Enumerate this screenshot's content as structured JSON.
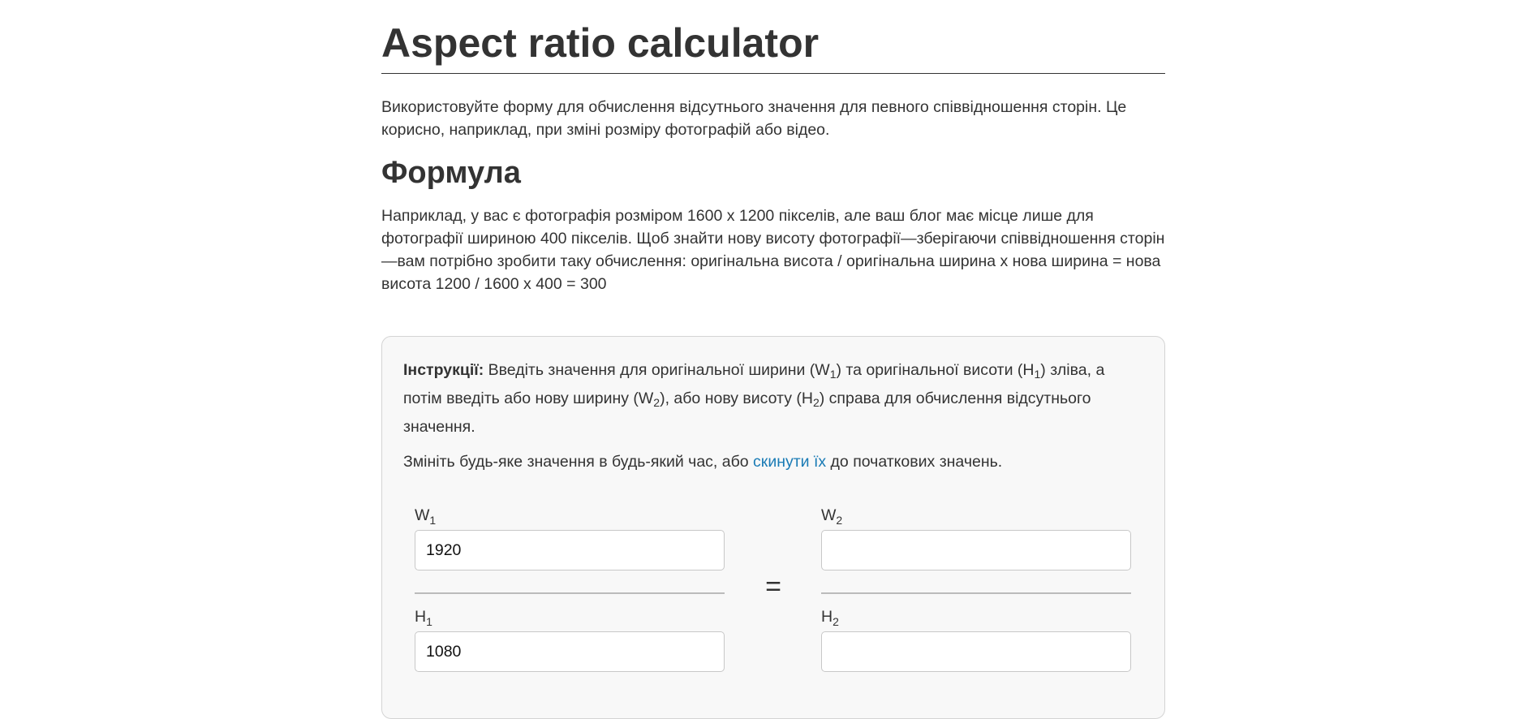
{
  "page": {
    "title": "Aspect ratio calculator",
    "intro": "Використовуйте форму для обчислення відсутнього значення для певного співвідношення сторін. Це корисно, наприклад, при зміні розміру фотографій або відео.",
    "formula_heading": "Формула",
    "formula_text": "Наприклад, у вас є фотографія розміром 1600 x 1200 пікселів, але ваш блог має місце лише для фотографії шириною 400 пікселів. Щоб знайти нову висоту фотографії—зберігаючи співвідношення сторін—вам потрібно зробити таку обчислення: оригінальна висота / оригінальна ширина x нова ширина = нова висота 1200 / 1600 x 400 = 300"
  },
  "calculator": {
    "instructions_label": "Інструкції:",
    "instructions_part1": " Введіть значення для оригінальної ширини (W",
    "instructions_sub1": "1",
    "instructions_part2": ") та оригінальної висоти (H",
    "instructions_sub2": "1",
    "instructions_part3": ") зліва, а потім введіть або нову ширину (W",
    "instructions_sub3": "2",
    "instructions_part4": "), або нову висоту (H",
    "instructions_sub4": "2",
    "instructions_part5": ") справа для обчислення відсутнього значення.",
    "reset_before": "Змініть будь-яке значення в будь-який час, або ",
    "reset_link": "скинути їх",
    "reset_after": " до початкових значень.",
    "equals_sign": "=",
    "fields": {
      "w1": {
        "letter": "W",
        "sub": "1",
        "value": "1920",
        "placeholder": ""
      },
      "h1": {
        "letter": "H",
        "sub": "1",
        "value": "1080",
        "placeholder": ""
      },
      "w2": {
        "letter": "W",
        "sub": "2",
        "value": "",
        "placeholder": ""
      },
      "h2": {
        "letter": "H",
        "sub": "2",
        "value": "",
        "placeholder": ""
      }
    }
  },
  "colors": {
    "text": "#333333",
    "link": "#1a7bb5",
    "box_background": "#f8f8f8",
    "box_border": "#d4d4d4"
  }
}
